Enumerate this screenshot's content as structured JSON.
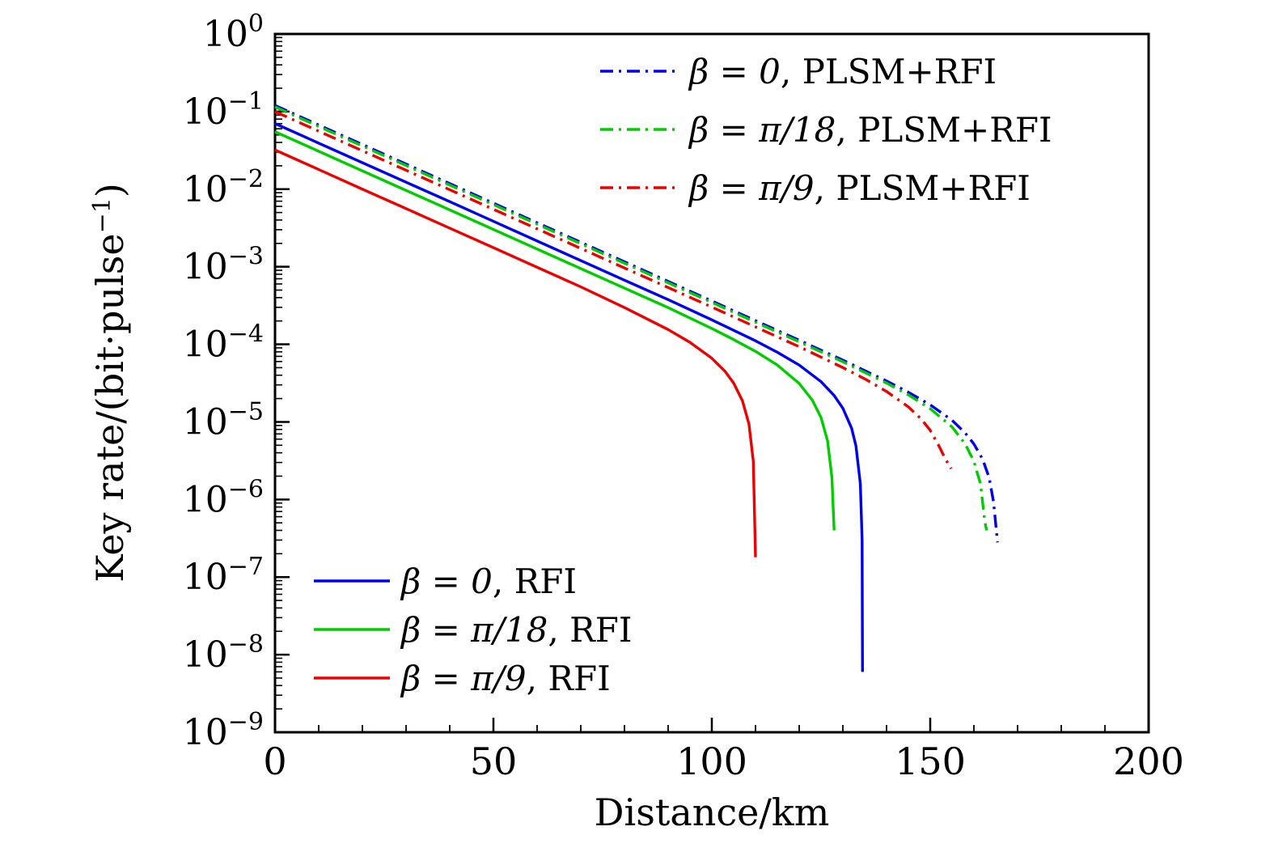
{
  "chart_data": {
    "type": "line",
    "title": "",
    "xlabel": "Distance/km",
    "ylabel": "Key rate/(bit·pulse⁻¹)",
    "ylabel_parts": [
      {
        "t": "Key rate/(bit·pulse"
      },
      {
        "t": "−1",
        "super": true
      },
      {
        "t": ")"
      }
    ],
    "xlim": [
      0,
      200
    ],
    "x_major_ticks": [
      0,
      50,
      100,
      150,
      200
    ],
    "x_minor_step": 10,
    "y_scale": "log",
    "y_log_range": [
      -9,
      0
    ],
    "y_major_exponents": [
      0,
      -1,
      -2,
      -3,
      -4,
      -5,
      -6,
      -7,
      -8,
      -9
    ],
    "grid": false,
    "frame": true,
    "colors": {
      "blue": "#0000EE",
      "green": "#00CC00",
      "red": "#EE0000",
      "axis": "#000000",
      "background": "#FFFFFF"
    },
    "legend_positions": {
      "plsm_group": "top-right",
      "rfi_group": "bottom-left"
    },
    "series": [
      {
        "id": "beta-0-plsm-rfi",
        "math": "β = 0",
        "suffix": ", PLSM+RFI",
        "color": "#0000EE",
        "style": "dashdot",
        "legend": "top",
        "points": [
          [
            0,
            0.12
          ],
          [
            20,
            0.0376
          ],
          [
            40,
            0.0118
          ],
          [
            60,
            0.00369
          ],
          [
            80,
            0.00116
          ],
          [
            100,
            0.000362
          ],
          [
            110,
            0.000202
          ],
          [
            120,
            0.000113
          ],
          [
            130,
            6.25e-05
          ],
          [
            140,
            3.37e-05
          ],
          [
            145,
            2.41e-05
          ],
          [
            150,
            1.66e-05
          ],
          [
            155,
            1.05e-05
          ],
          [
            158,
            7.2e-06
          ],
          [
            160,
            5.2e-06
          ],
          [
            162,
            3.3e-06
          ],
          [
            163.5,
            1.9e-06
          ],
          [
            164.5,
            9.3e-07
          ],
          [
            165.4,
            2.8e-07
          ]
        ]
      },
      {
        "id": "beta-pi18-plsm-rfi",
        "math": "β = π/18",
        "suffix": ", PLSM+RFI",
        "color": "#00CC00",
        "style": "dashdot",
        "legend": "top",
        "points": [
          [
            0,
            0.115
          ],
          [
            20,
            0.036
          ],
          [
            40,
            0.0113
          ],
          [
            60,
            0.00354
          ],
          [
            80,
            0.00111
          ],
          [
            100,
            0.000347
          ],
          [
            110,
            0.000193
          ],
          [
            120,
            0.000108
          ],
          [
            130,
            5.96e-05
          ],
          [
            140,
            3.17e-05
          ],
          [
            145,
            2.23e-05
          ],
          [
            150,
            1.48e-05
          ],
          [
            155,
            8.6e-06
          ],
          [
            158,
            5.2e-06
          ],
          [
            160,
            3.1e-06
          ],
          [
            161.5,
            1.6e-06
          ],
          [
            162.5,
            5.2e-07
          ],
          [
            162.9,
            4e-07
          ]
        ]
      },
      {
        "id": "beta-pi9-plsm-rfi",
        "math": "β = π/9",
        "suffix": ", PLSM+RFI",
        "color": "#EE0000",
        "style": "dashdot",
        "legend": "top",
        "points": [
          [
            0,
            0.1
          ],
          [
            20,
            0.0313
          ],
          [
            40,
            0.00982
          ],
          [
            60,
            0.00308
          ],
          [
            80,
            0.000964
          ],
          [
            100,
            0.000302
          ],
          [
            110,
            0.000168
          ],
          [
            120,
            9.31e-05
          ],
          [
            130,
            5.01e-05
          ],
          [
            135,
            3.59e-05
          ],
          [
            140,
            2.47e-05
          ],
          [
            145,
            1.56e-05
          ],
          [
            148,
            1.08e-05
          ],
          [
            150,
            7.8e-06
          ],
          [
            152,
            4.9e-06
          ],
          [
            153.5,
            3.3e-06
          ],
          [
            154.8,
            2.5e-06
          ]
        ]
      },
      {
        "id": "beta-0-rfi",
        "math": "β = 0",
        "suffix": ", RFI",
        "color": "#0000EE",
        "style": "solid",
        "legend": "bottom",
        "points": [
          [
            0,
            0.07
          ],
          [
            10,
            0.0392
          ],
          [
            20,
            0.0219
          ],
          [
            30,
            0.0123
          ],
          [
            40,
            0.0069
          ],
          [
            50,
            0.00385
          ],
          [
            60,
            0.00215
          ],
          [
            70,
            0.0012
          ],
          [
            80,
            0.00067
          ],
          [
            90,
            0.000377
          ],
          [
            100,
            0.000207
          ],
          [
            110,
            0.000111
          ],
          [
            115,
            7.9e-05
          ],
          [
            120,
            5.4e-05
          ],
          [
            125,
            3.3e-05
          ],
          [
            128,
            2.19e-05
          ],
          [
            130,
            1.5e-05
          ],
          [
            132,
            8.3e-06
          ],
          [
            133,
            4.9e-06
          ],
          [
            134,
            1.6e-06
          ],
          [
            134.4,
            3e-07
          ],
          [
            134.5,
            6e-09
          ]
        ]
      },
      {
        "id": "beta-pi18-rfi",
        "math": "β = π/18",
        "suffix": ", RFI",
        "color": "#00CC00",
        "style": "solid",
        "legend": "bottom",
        "points": [
          [
            0,
            0.055
          ],
          [
            10,
            0.0308
          ],
          [
            20,
            0.0172
          ],
          [
            30,
            0.00965
          ],
          [
            40,
            0.0054
          ],
          [
            50,
            0.00302
          ],
          [
            60,
            0.00169
          ],
          [
            70,
            0.000947
          ],
          [
            80,
            0.00053
          ],
          [
            90,
            0.000297
          ],
          [
            100,
            0.00016
          ],
          [
            105,
            0.000115
          ],
          [
            110,
            8.13e-05
          ],
          [
            115,
            5.4e-05
          ],
          [
            120,
            3.13e-05
          ],
          [
            123,
            1.91e-05
          ],
          [
            125,
            1.14e-05
          ],
          [
            126.5,
            5.7e-06
          ],
          [
            127.5,
            1.9e-06
          ],
          [
            128,
            4e-07
          ]
        ]
      },
      {
        "id": "beta-pi9-rfi",
        "math": "β = π/9",
        "suffix": ", RFI",
        "color": "#EE0000",
        "style": "solid",
        "legend": "bottom",
        "points": [
          [
            0,
            0.032
          ],
          [
            10,
            0.0179
          ],
          [
            20,
            0.01
          ],
          [
            30,
            0.00561
          ],
          [
            40,
            0.00314
          ],
          [
            50,
            0.00176
          ],
          [
            60,
            0.000984
          ],
          [
            70,
            0.000551
          ],
          [
            80,
            0.000298
          ],
          [
            90,
            0.000155
          ],
          [
            95,
            0.000106
          ],
          [
            100,
            6.61e-05
          ],
          [
            103,
            4.5e-05
          ],
          [
            105,
            3.16e-05
          ],
          [
            107,
            1.88e-05
          ],
          [
            108.5,
            9.4e-06
          ],
          [
            109.5,
            3.1e-06
          ],
          [
            110,
            1.8e-07
          ]
        ]
      }
    ]
  }
}
